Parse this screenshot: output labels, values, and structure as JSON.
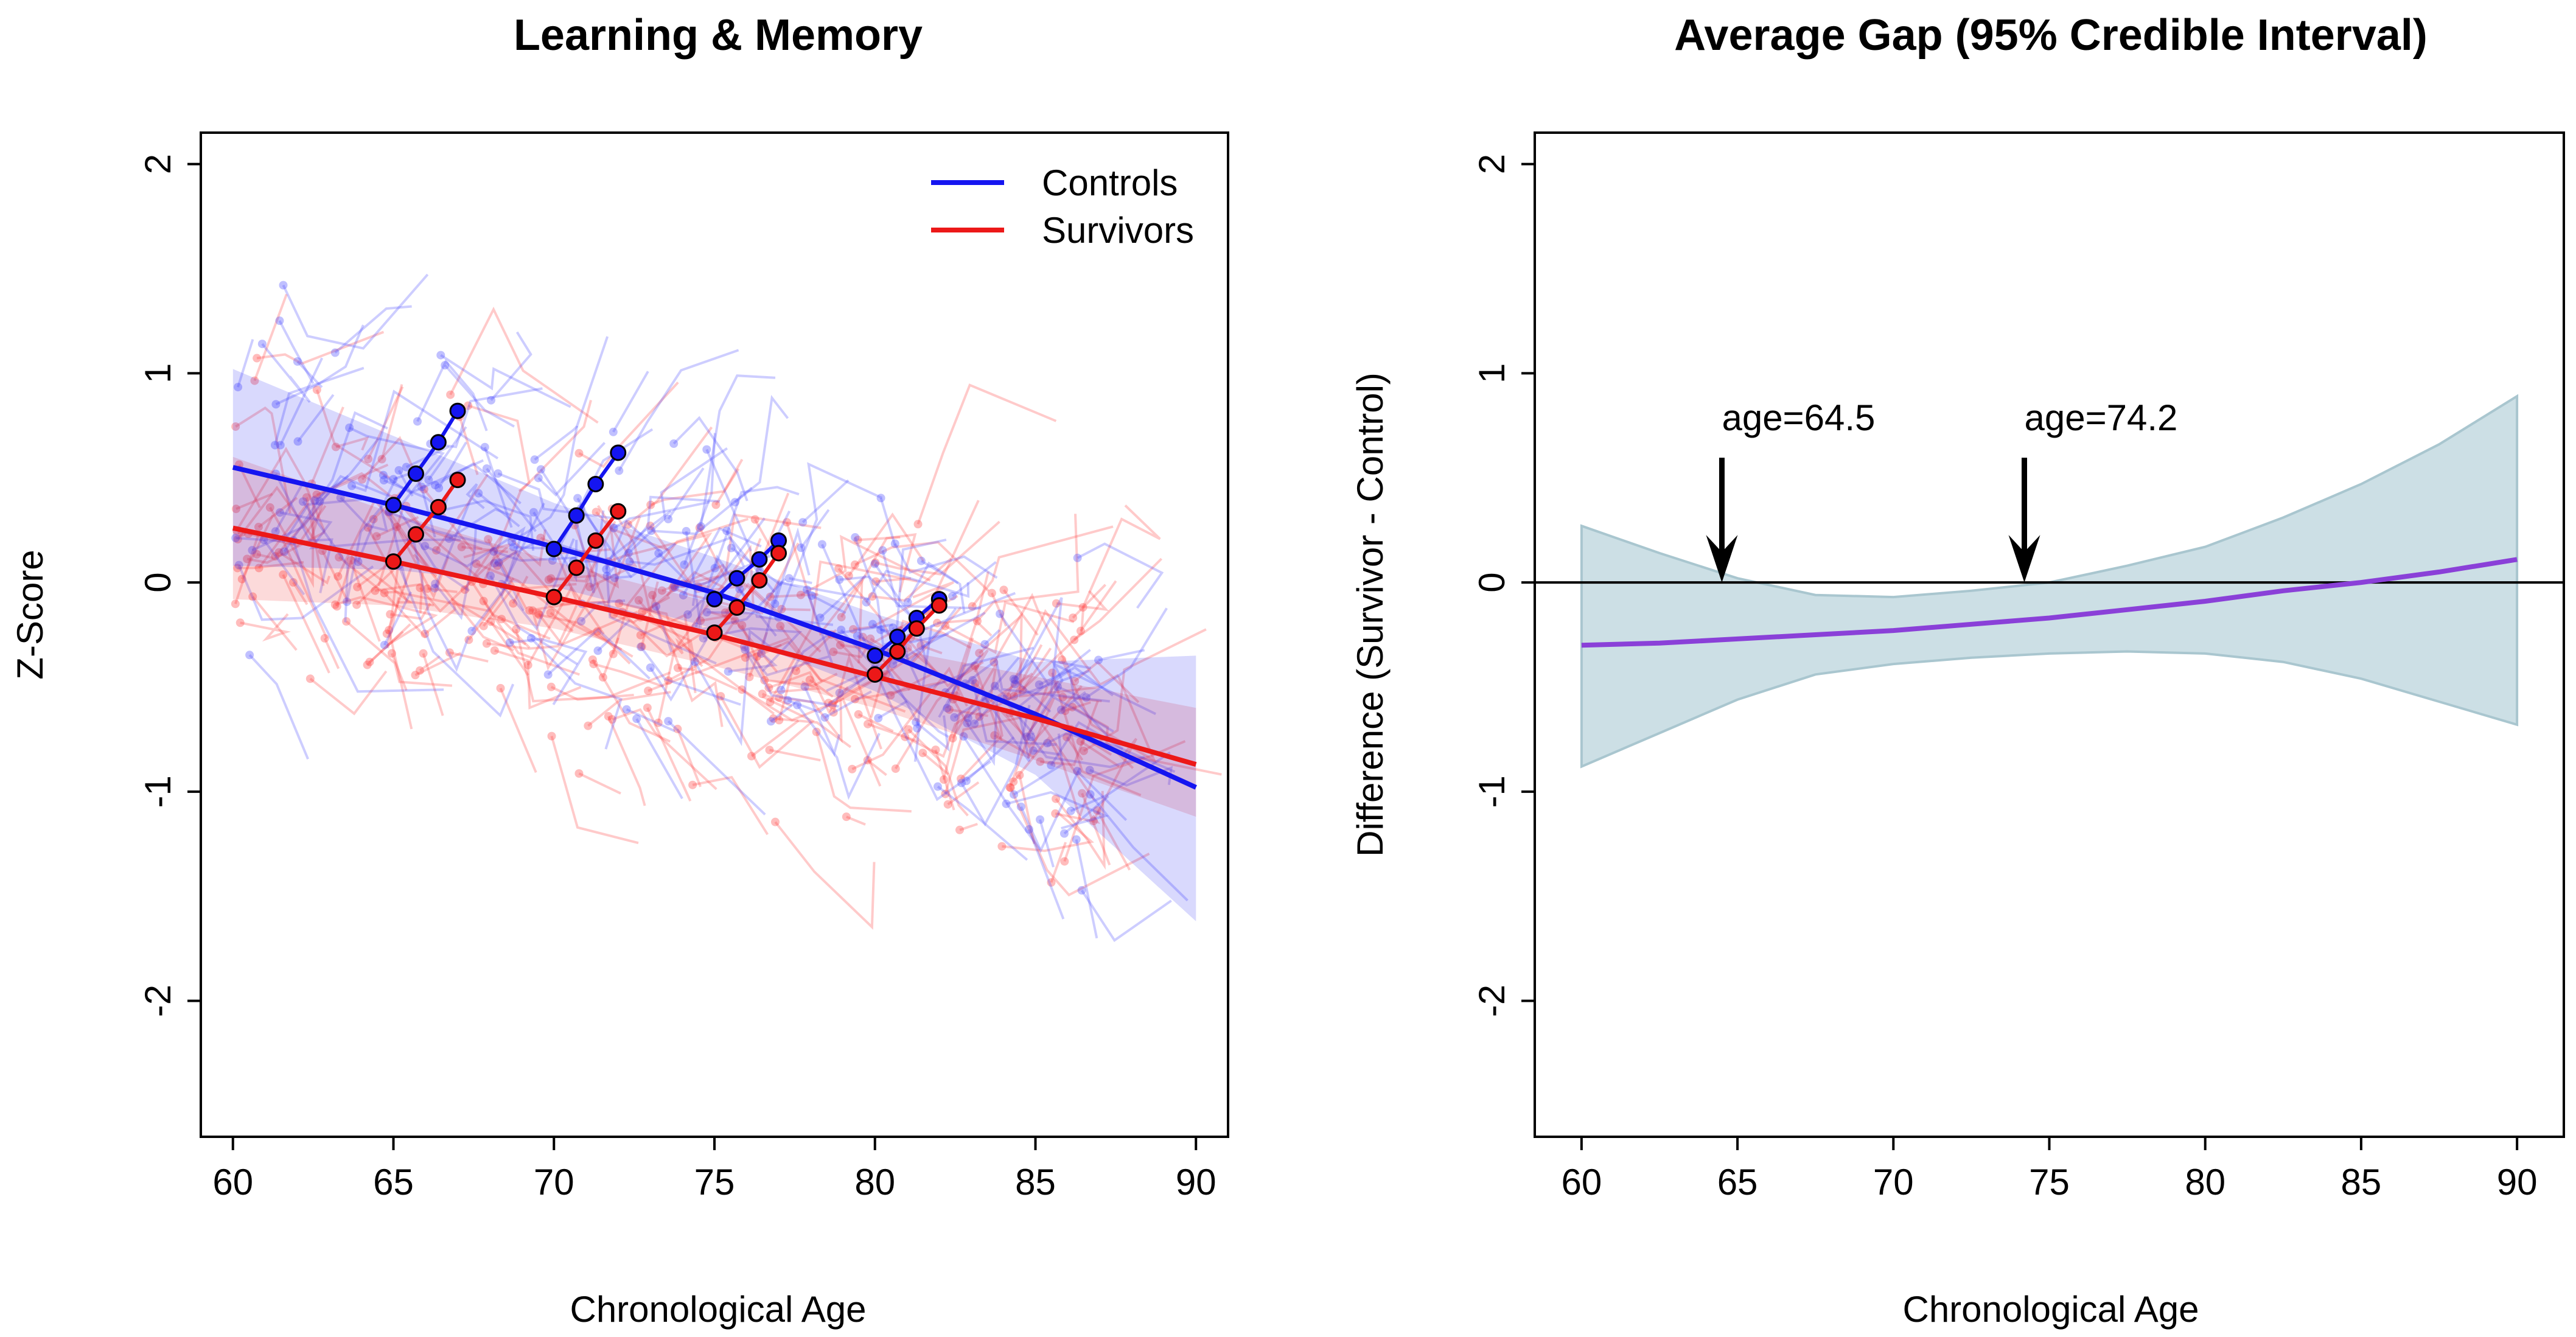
{
  "chart_data": [
    {
      "type": "line",
      "title": "Learning & Memory",
      "xlabel": "Chronological Age",
      "ylabel": "Z-Score",
      "xlim": [
        59,
        91
      ],
      "ylim": [
        -2.65,
        2.15
      ],
      "xticks": [
        60,
        65,
        70,
        75,
        80,
        85,
        90
      ],
      "yticks": [
        -2,
        -1,
        0,
        1,
        2
      ],
      "x_tick_labels": [
        "60",
        "65",
        "70",
        "75",
        "80",
        "85",
        "90"
      ],
      "y_tick_labels": [
        "-2",
        "-1",
        "0",
        "1",
        "2"
      ],
      "legend": {
        "position": "top-right",
        "entries": [
          "Controls",
          "Survivors"
        ]
      },
      "grid": false,
      "series": [
        {
          "name": "Controls",
          "color": "#1515f0",
          "fit": {
            "x": [
              60,
              65,
              70,
              75,
              80,
              85,
              90
            ],
            "y": [
              0.55,
              0.37,
              0.17,
              -0.05,
              -0.32,
              -0.63,
              -0.98
            ]
          },
          "band_upper": [
            1.02,
            0.7,
            0.38,
            0.12,
            -0.15,
            -0.38,
            -0.35
          ],
          "band_lower": [
            0.08,
            0.06,
            -0.02,
            -0.22,
            -0.52,
            -0.92,
            -1.62
          ],
          "example_trajectories": [
            {
              "x": [
                65,
                65.7,
                66.4,
                67
              ],
              "y": [
                0.37,
                0.52,
                0.67,
                0.82
              ]
            },
            {
              "x": [
                70,
                70.7,
                71.3,
                72
              ],
              "y": [
                0.16,
                0.32,
                0.47,
                0.62
              ]
            },
            {
              "x": [
                75,
                75.7,
                76.4,
                77
              ],
              "y": [
                -0.08,
                0.02,
                0.11,
                0.2
              ]
            },
            {
              "x": [
                80,
                80.7,
                81.3,
                82
              ],
              "y": [
                -0.35,
                -0.26,
                -0.17,
                -0.08
              ]
            }
          ]
        },
        {
          "name": "Survivors",
          "color": "#ec1818",
          "fit": {
            "x": [
              60,
              65,
              70,
              75,
              80,
              85,
              90
            ],
            "y": [
              0.26,
              0.1,
              -0.07,
              -0.25,
              -0.45,
              -0.65,
              -0.87
            ]
          },
          "band_upper": [
            0.6,
            0.33,
            0.1,
            -0.1,
            -0.3,
            -0.45,
            -0.6
          ],
          "band_lower": [
            -0.08,
            -0.11,
            -0.22,
            -0.4,
            -0.6,
            -0.85,
            -1.12
          ],
          "example_trajectories": [
            {
              "x": [
                65,
                65.7,
                66.4,
                67
              ],
              "y": [
                0.1,
                0.23,
                0.36,
                0.49
              ]
            },
            {
              "x": [
                70,
                70.7,
                71.3,
                72
              ],
              "y": [
                -0.07,
                0.07,
                0.2,
                0.34
              ]
            },
            {
              "x": [
                75,
                75.7,
                76.4,
                77
              ],
              "y": [
                -0.24,
                -0.12,
                0.01,
                0.14
              ]
            },
            {
              "x": [
                80,
                80.7,
                81.3,
                82
              ],
              "y": [
                -0.44,
                -0.33,
                -0.22,
                -0.11
              ]
            }
          ]
        }
      ]
    },
    {
      "type": "line",
      "title": "Average Gap (95% Credible Interval)",
      "xlabel": "Chronological Age",
      "ylabel": "Difference (Survivor - Control)",
      "xlim": [
        58.5,
        91.5
      ],
      "ylim": [
        -2.65,
        2.15
      ],
      "xticks": [
        60,
        65,
        70,
        75,
        80,
        85,
        90
      ],
      "yticks": [
        -2,
        -1,
        0,
        1,
        2
      ],
      "x_tick_labels": [
        "60",
        "65",
        "70",
        "75",
        "80",
        "85",
        "90"
      ],
      "y_tick_labels": [
        "-2",
        "-1",
        "0",
        "1",
        "2"
      ],
      "grid": false,
      "reference_line_y": 0,
      "series": [
        {
          "color": "#8a40d8",
          "x": [
            60,
            62.5,
            65,
            67.5,
            70,
            72.5,
            75,
            77.5,
            80,
            82.5,
            85,
            87.5,
            90
          ],
          "y": [
            -0.3,
            -0.29,
            -0.27,
            -0.25,
            -0.23,
            -0.2,
            -0.17,
            -0.13,
            -0.09,
            -0.04,
            0.0,
            0.05,
            0.11
          ],
          "band_upper": [
            0.27,
            0.14,
            0.02,
            -0.06,
            -0.07,
            -0.04,
            0.0,
            0.08,
            0.17,
            0.31,
            0.47,
            0.66,
            0.89
          ],
          "band_lower": [
            -0.88,
            -0.72,
            -0.56,
            -0.44,
            -0.39,
            -0.36,
            -0.34,
            -0.33,
            -0.34,
            -0.38,
            -0.46,
            -0.57,
            -0.68
          ],
          "band_color": "#ccdfe5"
        }
      ],
      "annotations": [
        {
          "label": "age=64.5",
          "x": 64.5,
          "y": 0
        },
        {
          "label": "age=74.2",
          "x": 74.2,
          "y": 0
        }
      ]
    }
  ]
}
